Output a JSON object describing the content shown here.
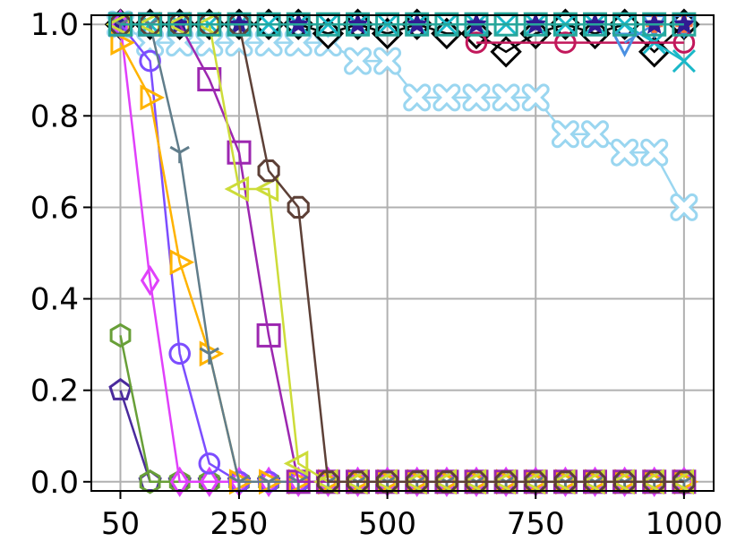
{
  "chart_data": {
    "type": "line",
    "title": "",
    "xlabel": "",
    "ylabel": "",
    "xlim": [
      1,
      1050
    ],
    "ylim": [
      -0.02,
      1.02
    ],
    "xticks": [
      50,
      250,
      500,
      750,
      1000
    ],
    "xtick_labels": [
      "50",
      "250",
      "500",
      "750",
      "1000"
    ],
    "yticks": [
      0.0,
      0.2,
      0.4,
      0.6,
      0.8,
      1.0
    ],
    "ytick_labels": [
      "0.0",
      "0.2",
      "0.4",
      "0.6",
      "0.8",
      "1.0"
    ],
    "grid": true,
    "legend": "none",
    "series": [
      {
        "color": "#9ad6f0",
        "marker": "X",
        "x": [
          50,
          100,
          150,
          200,
          250,
          300,
          350,
          400,
          450,
          500,
          550,
          600,
          650,
          700,
          750,
          800,
          850,
          900,
          950,
          1000
        ],
        "y": [
          1.0,
          0.96,
          0.96,
          0.96,
          0.96,
          0.96,
          0.96,
          0.96,
          0.92,
          0.92,
          0.84,
          0.84,
          0.84,
          0.84,
          0.84,
          0.76,
          0.76,
          0.72,
          0.72,
          0.6
        ]
      },
      {
        "color": "#000000",
        "marker": "D",
        "x": [
          50,
          100,
          150,
          200,
          250,
          300,
          350,
          400,
          450,
          500,
          550,
          600,
          650,
          700,
          750,
          800,
          850,
          900,
          950,
          1000
        ],
        "y": [
          1.0,
          1.0,
          1.0,
          1.0,
          1.0,
          1.0,
          1.0,
          0.98,
          1.0,
          0.98,
          1.0,
          0.98,
          0.98,
          0.94,
          0.98,
          1.0,
          0.98,
          1.0,
          0.94,
          1.0
        ]
      },
      {
        "color": "#1ab8c8",
        "marker": "x",
        "x": [
          50,
          100,
          150,
          200,
          250,
          300,
          350,
          400,
          450,
          500,
          550,
          600,
          650,
          700,
          750,
          800,
          850,
          900,
          950,
          1000
        ],
        "y": [
          1.0,
          1.0,
          1.0,
          1.0,
          1.0,
          1.0,
          1.0,
          1.0,
          1.0,
          1.0,
          1.0,
          1.0,
          1.0,
          1.0,
          1.0,
          1.0,
          1.0,
          1.0,
          0.96,
          0.92
        ]
      },
      {
        "color": "#c2185b",
        "marker": "o",
        "x": [
          650,
          800,
          1000
        ],
        "y": [
          0.96,
          0.96,
          0.96
        ]
      },
      {
        "color": "#4a90e2",
        "marker": "v",
        "x": [
          900,
          950,
          1000
        ],
        "y": [
          0.96,
          1.0,
          1.0
        ]
      },
      {
        "color": "#ff6f3c",
        "marker": "P",
        "x": [
          950,
          1000
        ],
        "y": [
          1.0,
          1.0
        ]
      },
      {
        "color": "#311b92",
        "marker": "*",
        "x": [
          50,
          150,
          250,
          350,
          450,
          550,
          650,
          750,
          850,
          950,
          1000
        ],
        "y": [
          1.0,
          1.0,
          1.0,
          1.0,
          1.0,
          1.0,
          1.0,
          1.0,
          1.0,
          1.0,
          1.0
        ]
      },
      {
        "color": "#4a2a9c",
        "marker": "p",
        "x": [
          50,
          100,
          150,
          200,
          250,
          300,
          350,
          400,
          450,
          500,
          550,
          600,
          650,
          700,
          750,
          800,
          850,
          900,
          950,
          1000
        ],
        "y": [
          0.2,
          0.0,
          0.0,
          0.0,
          0.0,
          0.0,
          0.0,
          0.0,
          0.0,
          0.0,
          0.0,
          0.0,
          0.0,
          0.0,
          0.0,
          0.0,
          0.0,
          0.0,
          0.0,
          0.0
        ]
      },
      {
        "color": "#689f38",
        "marker": "h",
        "x": [
          50,
          100,
          150,
          200,
          250,
          300,
          350,
          400,
          450,
          500,
          550,
          600,
          650,
          700,
          750,
          800,
          850,
          900,
          950,
          1000
        ],
        "y": [
          0.32,
          0.0,
          0.0,
          0.0,
          0.0,
          0.0,
          0.0,
          0.0,
          0.0,
          0.0,
          0.0,
          0.0,
          0.0,
          0.0,
          0.0,
          0.0,
          0.0,
          0.0,
          0.0,
          0.0
        ]
      },
      {
        "color": "#e040fb",
        "marker": "d",
        "x": [
          50,
          100,
          150,
          200,
          250,
          300,
          350,
          400,
          450,
          500,
          550,
          600,
          650,
          700,
          750,
          800,
          850,
          900,
          950,
          1000
        ],
        "y": [
          1.0,
          0.44,
          0.0,
          0.0,
          0.0,
          0.0,
          0.0,
          0.0,
          0.0,
          0.0,
          0.0,
          0.0,
          0.0,
          0.0,
          0.0,
          0.0,
          0.0,
          0.0,
          0.0,
          0.0
        ]
      },
      {
        "color": "#7c4dff",
        "marker": "o",
        "x": [
          50,
          100,
          150,
          200,
          250,
          300,
          350,
          400,
          450,
          500,
          550,
          600,
          650,
          700,
          750,
          800,
          850,
          900,
          950,
          1000
        ],
        "y": [
          1.0,
          0.92,
          0.28,
          0.04,
          0.0,
          0.0,
          0.0,
          0.0,
          0.0,
          0.0,
          0.0,
          0.0,
          0.0,
          0.0,
          0.0,
          0.0,
          0.0,
          0.0,
          0.0,
          0.0
        ]
      },
      {
        "color": "#ffb300",
        "marker": ">",
        "x": [
          50,
          100,
          150,
          200,
          250,
          300,
          350,
          400,
          450,
          500,
          550,
          600,
          650,
          700,
          750,
          800,
          850,
          900,
          950,
          1000
        ],
        "y": [
          0.96,
          0.84,
          0.48,
          0.28,
          0.0,
          0.0,
          0.0,
          0.0,
          0.0,
          0.0,
          0.0,
          0.0,
          0.0,
          0.0,
          0.0,
          0.0,
          0.0,
          0.0,
          0.0,
          0.0
        ]
      },
      {
        "color": "#607d8b",
        "marker": "1",
        "x": [
          50,
          100,
          150,
          200,
          250,
          300,
          350,
          400,
          450,
          500,
          550,
          600,
          650,
          700,
          750,
          800,
          850,
          900,
          950,
          1000
        ],
        "y": [
          1.0,
          1.0,
          0.72,
          0.28,
          0.0,
          0.0,
          0.0,
          0.0,
          0.0,
          0.0,
          0.0,
          0.0,
          0.0,
          0.0,
          0.0,
          0.0,
          0.0,
          0.0,
          0.0,
          0.0
        ]
      },
      {
        "color": "#9c27b0",
        "marker": "s",
        "x": [
          50,
          100,
          150,
          200,
          250,
          300,
          350,
          400,
          450,
          500,
          550,
          600,
          650,
          700,
          750,
          800,
          850,
          900,
          950,
          1000
        ],
        "y": [
          1.0,
          1.0,
          1.0,
          0.88,
          0.72,
          0.32,
          0.0,
          0.0,
          0.0,
          0.0,
          0.0,
          0.0,
          0.0,
          0.0,
          0.0,
          0.0,
          0.0,
          0.0,
          0.0,
          0.0
        ]
      },
      {
        "color": "#cddc39",
        "marker": "<",
        "x": [
          50,
          100,
          150,
          200,
          250,
          300,
          350,
          400,
          450,
          500,
          550,
          600,
          650,
          700,
          750,
          800,
          850,
          900,
          950,
          1000
        ],
        "y": [
          1.0,
          1.0,
          1.0,
          1.0,
          0.64,
          0.64,
          0.04,
          0.0,
          0.0,
          0.0,
          0.0,
          0.0,
          0.0,
          0.0,
          0.0,
          0.0,
          0.0,
          0.0,
          0.0,
          0.0
        ]
      },
      {
        "color": "#5d4037",
        "marker": "8",
        "x": [
          50,
          100,
          150,
          200,
          250,
          300,
          350,
          400,
          450,
          500,
          550,
          600,
          650,
          700,
          750,
          800,
          850,
          900,
          950,
          1000
        ],
        "y": [
          1.0,
          1.0,
          1.0,
          1.0,
          1.0,
          0.68,
          0.6,
          0.0,
          0.0,
          0.0,
          0.0,
          0.0,
          0.0,
          0.0,
          0.0,
          0.0,
          0.0,
          0.0,
          0.0,
          0.0
        ]
      },
      {
        "color": "#26a69a",
        "marker": "s",
        "x": [
          50,
          100,
          150,
          200,
          250,
          300,
          350,
          400,
          450,
          500,
          550,
          600,
          650,
          700,
          750,
          800,
          850,
          900,
          950,
          1000
        ],
        "y": [
          1.0,
          1.0,
          1.0,
          1.0,
          1.0,
          1.0,
          1.0,
          1.0,
          1.0,
          1.0,
          1.0,
          1.0,
          1.0,
          1.0,
          1.0,
          1.0,
          1.0,
          1.0,
          1.0,
          1.0
        ]
      }
    ]
  }
}
